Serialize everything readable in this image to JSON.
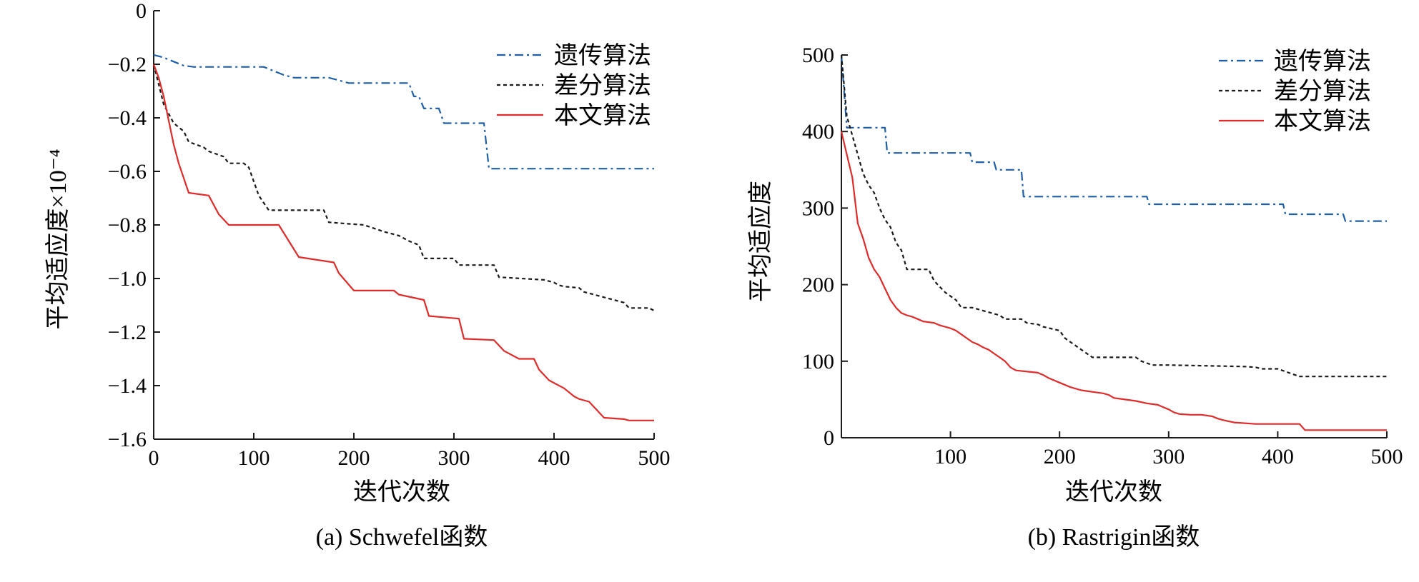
{
  "charts": [
    {
      "caption": "(a) Schwefel函数",
      "chart_data": {
        "type": "line",
        "xlabel": "迭代次数",
        "ylabel": "平均适应度×10⁻⁴",
        "xlim": [
          0,
          500
        ],
        "ylim": [
          -1.6,
          0
        ],
        "x_ticks": [
          0,
          100,
          200,
          300,
          400,
          500
        ],
        "x_tick_labels": [
          "0",
          "100",
          "200",
          "300",
          "400",
          "500"
        ],
        "y_ticks": [
          0,
          -0.2,
          -0.4,
          -0.6,
          -0.8,
          -1.0,
          -1.2,
          -1.4,
          -1.6
        ],
        "y_tick_labels": [
          "0",
          "−0.2",
          "−0.4",
          "−0.6",
          "−0.8",
          "−1.0",
          "−1.2",
          "−1.4",
          "−1.6"
        ],
        "legend_position": "top-right",
        "series": [
          {
            "name": "遗传算法",
            "color": "#1f5fa8",
            "dash": "dashdot",
            "x": [
              0,
              10,
              20,
              30,
              40,
              110,
              120,
              130,
              140,
              175,
              185,
              195,
              255,
              260,
              265,
              270,
              275,
              285,
              290,
              295,
              300,
              330,
              335,
              500
            ],
            "y": [
              -0.165,
              -0.175,
              -0.19,
              -0.205,
              -0.21,
              -0.21,
              -0.225,
              -0.24,
              -0.25,
              -0.25,
              -0.26,
              -0.27,
              -0.27,
              -0.32,
              -0.32,
              -0.365,
              -0.365,
              -0.365,
              -0.42,
              -0.42,
              -0.42,
              -0.42,
              -0.59,
              -0.59
            ]
          },
          {
            "name": "差分算法",
            "color": "#1a1a1a",
            "dash": "dotted",
            "x": [
              0,
              10,
              20,
              30,
              35,
              50,
              55,
              70,
              75,
              90,
              95,
              105,
              115,
              135,
              170,
              175,
              210,
              230,
              245,
              255,
              265,
              270,
              300,
              305,
              340,
              345,
              390,
              400,
              405,
              410,
              425,
              430,
              450,
              460,
              470,
              475,
              495,
              500
            ],
            "y": [
              -0.2,
              -0.35,
              -0.42,
              -0.45,
              -0.49,
              -0.51,
              -0.525,
              -0.545,
              -0.57,
              -0.57,
              -0.585,
              -0.69,
              -0.745,
              -0.745,
              -0.745,
              -0.79,
              -0.8,
              -0.825,
              -0.84,
              -0.86,
              -0.875,
              -0.925,
              -0.925,
              -0.95,
              -0.95,
              -0.995,
              -1.005,
              -1.015,
              -1.025,
              -1.03,
              -1.035,
              -1.05,
              -1.07,
              -1.08,
              -1.09,
              -1.11,
              -1.11,
              -1.12
            ]
          },
          {
            "name": "本文算法",
            "color": "#e02b2b",
            "x": [
              0,
              5,
              10,
              15,
              20,
              25,
              35,
              55,
              65,
              75,
              100,
              125,
              145,
              180,
              185,
              200,
              240,
              245,
              270,
              275,
              305,
              310,
              340,
              350,
              365,
              380,
              385,
              395,
              410,
              420,
              425,
              435,
              445,
              450,
              470,
              475,
              500
            ],
            "y": [
              -0.2,
              -0.25,
              -0.32,
              -0.41,
              -0.5,
              -0.57,
              -0.68,
              -0.69,
              -0.76,
              -0.8,
              -0.8,
              -0.8,
              -0.92,
              -0.94,
              -0.98,
              -1.045,
              -1.045,
              -1.06,
              -1.08,
              -1.14,
              -1.15,
              -1.225,
              -1.23,
              -1.27,
              -1.3,
              -1.3,
              -1.34,
              -1.38,
              -1.41,
              -1.44,
              -1.45,
              -1.46,
              -1.5,
              -1.52,
              -1.525,
              -1.53,
              -1.53
            ]
          }
        ]
      }
    },
    {
      "caption": "(b) Rastrigin函数",
      "chart_data": {
        "type": "line",
        "xlabel": "迭代次数",
        "ylabel": "平均适应度",
        "xlim": [
          0,
          500
        ],
        "ylim": [
          0,
          500
        ],
        "x_ticks": [
          100,
          200,
          300,
          400,
          500
        ],
        "x_tick_labels": [
          "100",
          "200",
          "300",
          "400",
          "500"
        ],
        "y_ticks": [
          0,
          100,
          200,
          300,
          400,
          500
        ],
        "y_tick_labels": [
          "0",
          "100",
          "200",
          "300",
          "400",
          "500"
        ],
        "legend_position": "top-right",
        "series": [
          {
            "name": "遗传算法",
            "color": "#1f5fa8",
            "dash": "dashdot",
            "x": [
              0,
              5,
              40,
              42,
              118,
              120,
              140,
              142,
              165,
              167,
              280,
              282,
              405,
              407,
              460,
              462,
              500
            ],
            "y": [
              500,
              405,
              405,
              372,
              372,
              360,
              360,
              350,
              350,
              315,
              315,
              305,
              305,
              292,
              292,
              283,
              283
            ]
          },
          {
            "name": "差分算法",
            "color": "#1a1a1a",
            "dash": "dotted",
            "x": [
              0,
              5,
              10,
              15,
              20,
              25,
              30,
              35,
              40,
              45,
              50,
              55,
              60,
              65,
              80,
              85,
              95,
              105,
              110,
              115,
              120,
              145,
              150,
              165,
              170,
              180,
              185,
              200,
              205,
              210,
              215,
              220,
              230,
              240,
              250,
              255,
              270,
              275,
              285,
              290,
              300,
              370,
              380,
              385,
              400,
              410,
              420,
              425,
              450,
              500
            ],
            "y": [
              500,
              420,
              395,
              370,
              345,
              330,
              320,
              300,
              285,
              275,
              255,
              245,
              220,
              220,
              220,
              205,
              190,
              180,
              170,
              170,
              170,
              160,
              155,
              155,
              150,
              148,
              145,
              140,
              130,
              125,
              120,
              115,
              105,
              105,
              105,
              105,
              105,
              100,
              95,
              95,
              95,
              93,
              92,
              90,
              90,
              85,
              80,
              80,
              80,
              80
            ]
          },
          {
            "name": "本文算法",
            "color": "#e02b2b",
            "x": [
              0,
              5,
              10,
              15,
              20,
              25,
              30,
              35,
              40,
              45,
              50,
              55,
              60,
              65,
              70,
              75,
              85,
              90,
              95,
              100,
              105,
              110,
              115,
              120,
              125,
              130,
              135,
              140,
              145,
              150,
              155,
              160,
              180,
              185,
              190,
              200,
              210,
              220,
              230,
              240,
              245,
              250,
              260,
              270,
              280,
              290,
              295,
              300,
              305,
              310,
              320,
              330,
              340,
              345,
              350,
              360,
              380,
              420,
              425,
              430,
              470,
              500
            ],
            "y": [
              400,
              370,
              340,
              280,
              260,
              235,
              220,
              210,
              195,
              180,
              170,
              163,
              160,
              158,
              155,
              152,
              150,
              147,
              145,
              143,
              140,
              135,
              130,
              125,
              122,
              118,
              115,
              110,
              105,
              100,
              92,
              88,
              85,
              82,
              78,
              72,
              66,
              62,
              60,
              58,
              56,
              52,
              50,
              48,
              45,
              43,
              40,
              37,
              33,
              31,
              30,
              30,
              28,
              25,
              23,
              20,
              18,
              18,
              10,
              10,
              10,
              10
            ]
          }
        ]
      }
    }
  ]
}
